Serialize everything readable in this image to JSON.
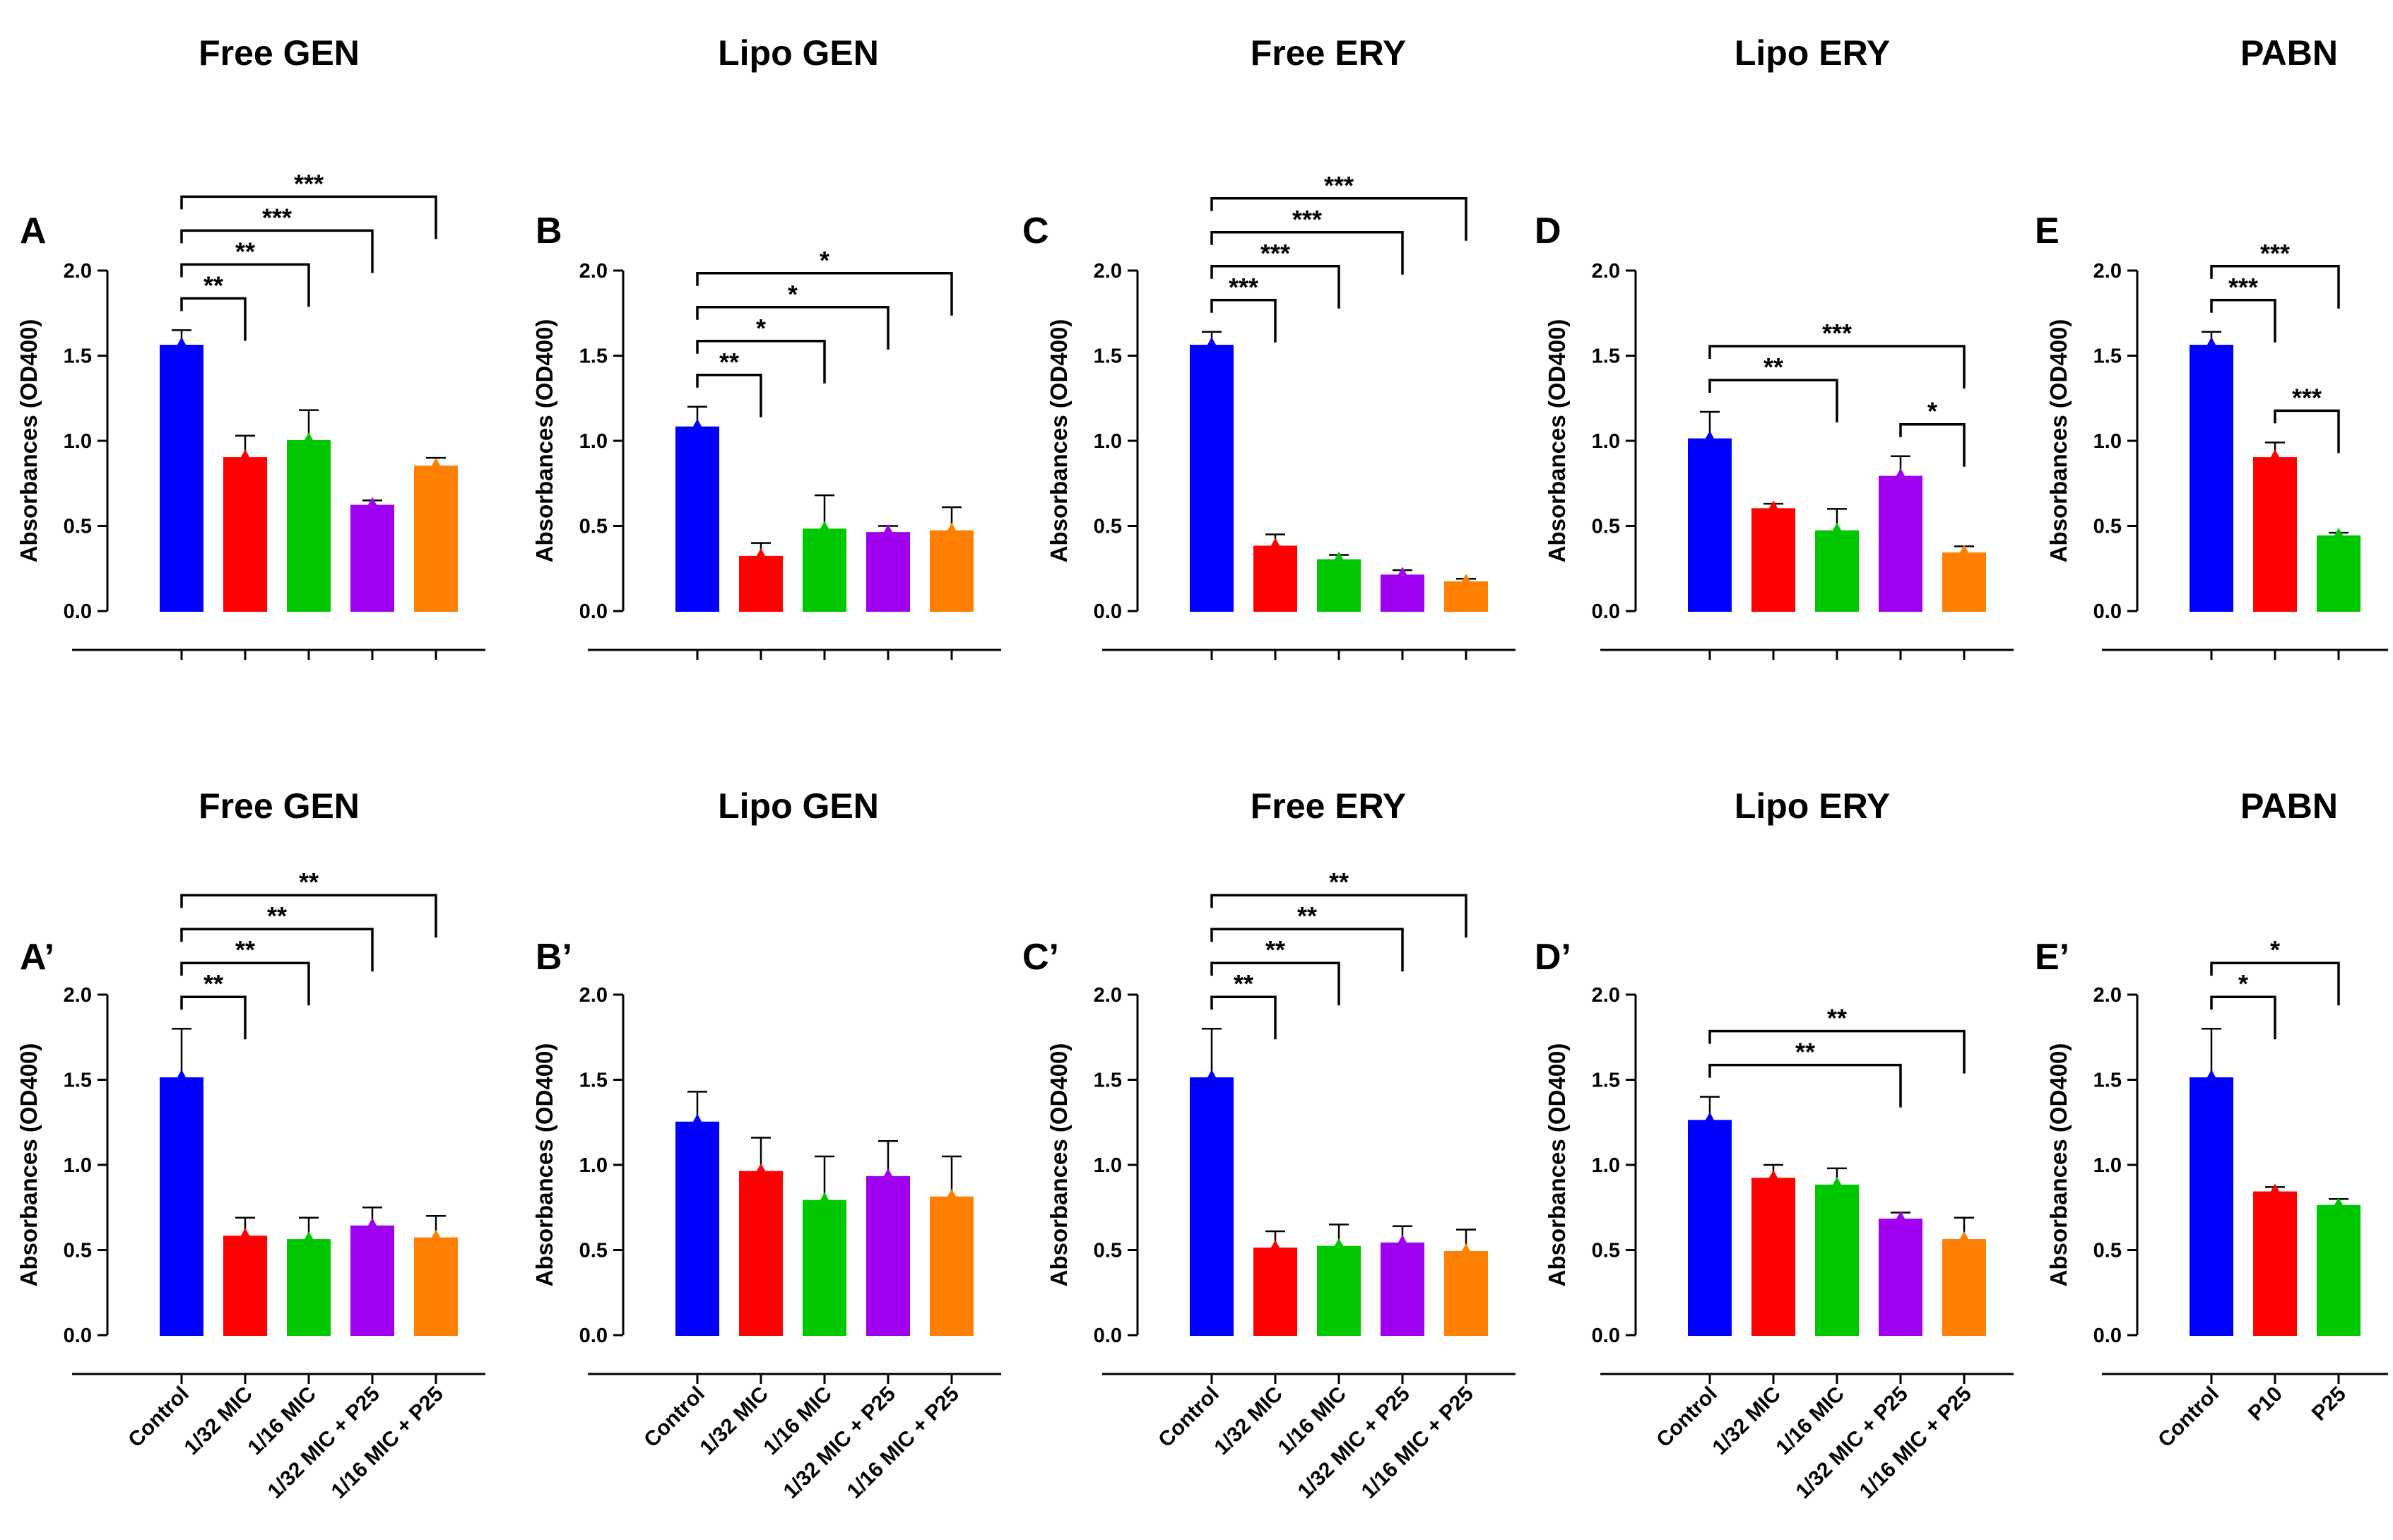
{
  "figure": {
    "ylabel": "Absorbances (OD400)",
    "ylim": [
      0,
      2.0
    ],
    "yticks": [
      "0.0",
      "0.5",
      "1.0",
      "1.5",
      "2.0"
    ]
  },
  "colors": {
    "Control": "#0000ff",
    "1/32 MIC": "#ff0000",
    "1/16 MIC": "#00c800",
    "1/32 MIC + P25": "#a000f0",
    "1/16 MIC + P25": "#ff8000",
    "P10": "#ff0000",
    "P25": "#00c800"
  },
  "chart_data": [
    {
      "type": "bar",
      "panel": "A",
      "title": "Free GEN",
      "ylabel": "Absorbances (OD400)",
      "ylim": [
        0,
        2.0
      ],
      "categories": [
        "Control",
        "1/32 MIC",
        "1/16 MIC",
        "1/32 MIC + P25",
        "1/16 MIC + P25"
      ],
      "values": [
        1.56,
        0.9,
        1.0,
        0.62,
        0.85
      ],
      "errors": [
        0.09,
        0.13,
        0.18,
        0.03,
        0.05
      ],
      "show_categories": false,
      "comparisons": [
        {
          "from": 0,
          "to": 1,
          "label": "**"
        },
        {
          "from": 0,
          "to": 2,
          "label": "**"
        },
        {
          "from": 0,
          "to": 3,
          "label": "***"
        },
        {
          "from": 0,
          "to": 4,
          "label": "***"
        }
      ]
    },
    {
      "type": "bar",
      "panel": "B",
      "title": "Lipo GEN",
      "ylabel": "Absorbances (OD400)",
      "ylim": [
        0,
        2.0
      ],
      "categories": [
        "Control",
        "1/32 MIC",
        "1/16 MIC",
        "1/32 MIC + P25",
        "1/16 MIC + P25"
      ],
      "values": [
        1.08,
        0.32,
        0.48,
        0.46,
        0.47
      ],
      "errors": [
        0.12,
        0.08,
        0.2,
        0.04,
        0.14
      ],
      "show_categories": false,
      "comparisons": [
        {
          "from": 0,
          "to": 1,
          "label": "**"
        },
        {
          "from": 0,
          "to": 2,
          "label": "*"
        },
        {
          "from": 0,
          "to": 3,
          "label": "*"
        },
        {
          "from": 0,
          "to": 4,
          "label": "*"
        }
      ]
    },
    {
      "type": "bar",
      "panel": "C",
      "title": "Free ERY",
      "ylabel": "Absorbances (OD400)",
      "ylim": [
        0,
        2.0
      ],
      "categories": [
        "Control",
        "1/32 MIC",
        "1/16 MIC",
        "1/32 MIC + P25",
        "1/16 MIC + P25"
      ],
      "values": [
        1.56,
        0.38,
        0.3,
        0.21,
        0.17
      ],
      "errors": [
        0.08,
        0.07,
        0.03,
        0.03,
        0.02
      ],
      "show_categories": false,
      "comparisons": [
        {
          "from": 0,
          "to": 1,
          "label": "***"
        },
        {
          "from": 0,
          "to": 2,
          "label": "***"
        },
        {
          "from": 0,
          "to": 3,
          "label": "***"
        },
        {
          "from": 0,
          "to": 4,
          "label": "***"
        }
      ]
    },
    {
      "type": "bar",
      "panel": "D",
      "title": "Lipo ERY",
      "ylabel": "Absorbances (OD400)",
      "ylim": [
        0,
        2.0
      ],
      "categories": [
        "Control",
        "1/32 MIC",
        "1/16 MIC",
        "1/32 MIC + P25",
        "1/16 MIC + P25"
      ],
      "values": [
        1.01,
        0.6,
        0.47,
        0.79,
        0.34
      ],
      "errors": [
        0.16,
        0.03,
        0.13,
        0.12,
        0.04
      ],
      "show_categories": false,
      "comparisons": [
        {
          "from": 0,
          "to": 2,
          "label": "**"
        },
        {
          "from": 0,
          "to": 4,
          "label": "***"
        },
        {
          "from": 3,
          "to": 4,
          "label": "*"
        }
      ]
    },
    {
      "type": "bar",
      "panel": "E",
      "title": "PABN",
      "ylabel": "Absorbances (OD400)",
      "ylim": [
        0,
        2.0
      ],
      "categories": [
        "Control",
        "P10",
        "P25"
      ],
      "values": [
        1.56,
        0.9,
        0.44
      ],
      "errors": [
        0.08,
        0.09,
        0.02
      ],
      "show_categories": false,
      "comparisons": [
        {
          "from": 0,
          "to": 1,
          "label": "***"
        },
        {
          "from": 0,
          "to": 2,
          "label": "***"
        },
        {
          "from": 1,
          "to": 2,
          "label": "***"
        }
      ]
    },
    {
      "type": "bar",
      "panel": "A’",
      "title": "Free GEN",
      "ylabel": "Absorbances (OD400)",
      "ylim": [
        0,
        2.0
      ],
      "categories": [
        "Control",
        "1/32 MIC",
        "1/16 MIC",
        "1/32 MIC + P25",
        "1/16 MIC + P25"
      ],
      "values": [
        1.51,
        0.58,
        0.56,
        0.64,
        0.57
      ],
      "errors": [
        0.29,
        0.11,
        0.13,
        0.11,
        0.13
      ],
      "show_categories": true,
      "comparisons": [
        {
          "from": 0,
          "to": 1,
          "label": "**"
        },
        {
          "from": 0,
          "to": 2,
          "label": "**"
        },
        {
          "from": 0,
          "to": 3,
          "label": "**"
        },
        {
          "from": 0,
          "to": 4,
          "label": "**"
        }
      ]
    },
    {
      "type": "bar",
      "panel": "B’",
      "title": "Lipo GEN",
      "ylabel": "Absorbances (OD400)",
      "ylim": [
        0,
        2.0
      ],
      "categories": [
        "Control",
        "1/32 MIC",
        "1/16 MIC",
        "1/32 MIC + P25",
        "1/16 MIC + P25"
      ],
      "values": [
        1.25,
        0.96,
        0.79,
        0.93,
        0.81
      ],
      "errors": [
        0.18,
        0.2,
        0.26,
        0.21,
        0.24
      ],
      "show_categories": true,
      "comparisons": []
    },
    {
      "type": "bar",
      "panel": "C’",
      "title": "Free ERY",
      "ylabel": "Absorbances (OD400)",
      "ylim": [
        0,
        2.0
      ],
      "categories": [
        "Control",
        "1/32 MIC",
        "1/16 MIC",
        "1/32 MIC + P25",
        "1/16 MIC + P25"
      ],
      "values": [
        1.51,
        0.51,
        0.52,
        0.54,
        0.49
      ],
      "errors": [
        0.29,
        0.1,
        0.13,
        0.1,
        0.13
      ],
      "show_categories": true,
      "comparisons": [
        {
          "from": 0,
          "to": 1,
          "label": "**"
        },
        {
          "from": 0,
          "to": 2,
          "label": "**"
        },
        {
          "from": 0,
          "to": 3,
          "label": "**"
        },
        {
          "from": 0,
          "to": 4,
          "label": "**"
        }
      ]
    },
    {
      "type": "bar",
      "panel": "D’",
      "title": "Lipo ERY",
      "ylabel": "Absorbances (OD400)",
      "ylim": [
        0,
        2.0
      ],
      "categories": [
        "Control",
        "1/32 MIC",
        "1/16 MIC",
        "1/32 MIC + P25",
        "1/16 MIC + P25"
      ],
      "values": [
        1.26,
        0.92,
        0.88,
        0.68,
        0.56
      ],
      "errors": [
        0.14,
        0.08,
        0.1,
        0.04,
        0.13
      ],
      "show_categories": true,
      "comparisons": [
        {
          "from": 0,
          "to": 3,
          "label": "**"
        },
        {
          "from": 0,
          "to": 4,
          "label": "**"
        }
      ]
    },
    {
      "type": "bar",
      "panel": "E’",
      "title": "PABN",
      "ylabel": "Absorbances (OD400)",
      "ylim": [
        0,
        2.0
      ],
      "categories": [
        "Control",
        "P10",
        "P25"
      ],
      "values": [
        1.51,
        0.84,
        0.76
      ],
      "errors": [
        0.29,
        0.03,
        0.04
      ],
      "show_categories": true,
      "comparisons": [
        {
          "from": 0,
          "to": 1,
          "label": "*"
        },
        {
          "from": 0,
          "to": 2,
          "label": "*"
        }
      ]
    }
  ]
}
